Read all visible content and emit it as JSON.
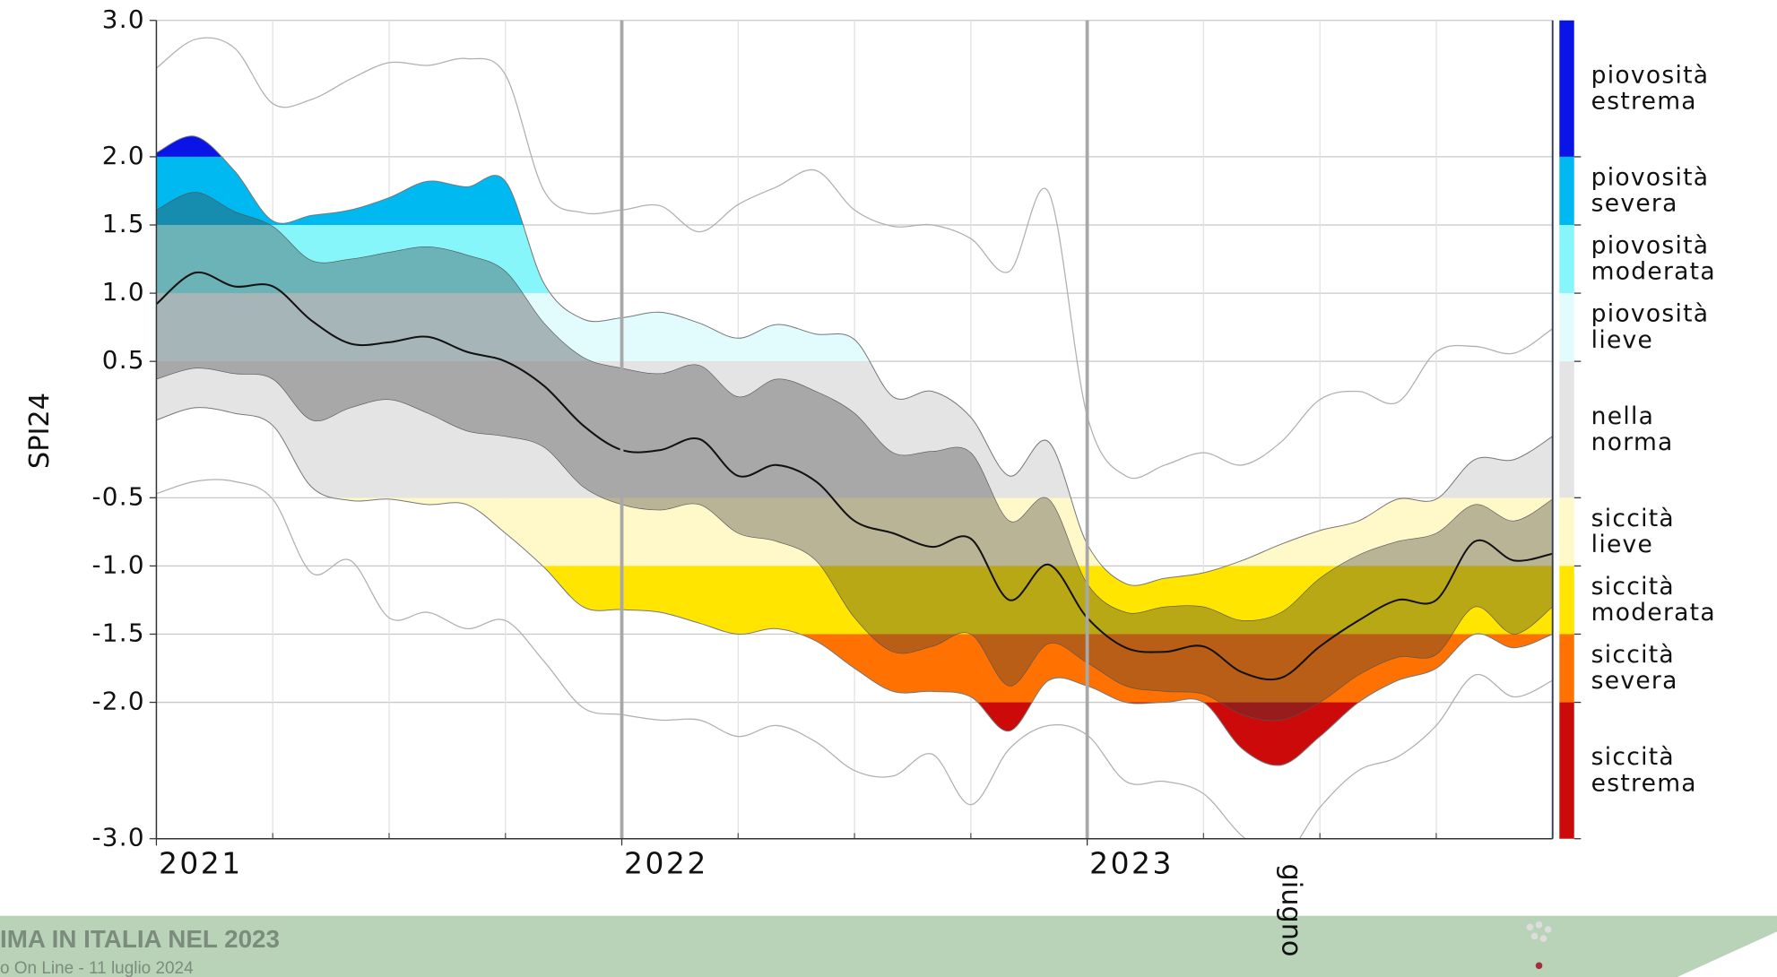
{
  "chart_data": {
    "type": "band",
    "ylabel": "SPI24",
    "xlim": [
      2021,
      2024
    ],
    "xticks": [
      2021,
      2022,
      2023
    ],
    "xminorticks": [
      2021.25,
      2021.5,
      2021.75,
      2022.25,
      2022.5,
      2022.75,
      2023.25,
      2023.5,
      2023.75
    ],
    "ylim": [
      -3,
      3
    ],
    "yticks": [
      {
        "value": 3,
        "label": "3.0"
      },
      {
        "value": 2,
        "label": "2.0"
      },
      1.5,
      {
        "value": 1,
        "label": "1.0"
      },
      0.5,
      -0.5,
      {
        "value": -1,
        "label": "-1.0"
      },
      -1.5,
      {
        "value": -2,
        "label": "-2.0"
      },
      {
        "value": -3,
        "label": "-3.0"
      }
    ],
    "grid": true,
    "x": [
      2021,
      2021.083,
      2021.167,
      2021.25,
      2021.333,
      2021.417,
      2021.5,
      2021.583,
      2021.667,
      2021.75,
      2021.833,
      2021.917,
      2022,
      2022.083,
      2022.167,
      2022.25,
      2022.333,
      2022.417,
      2022.5,
      2022.583,
      2022.667,
      2022.75,
      2022.833,
      2022.917,
      2023,
      2023.083,
      2023.167,
      2023.25,
      2023.333,
      2023.417,
      2023.5,
      2023.583,
      2023.667,
      2023.75,
      2023.833,
      2023.917,
      2024
    ],
    "median": {
      "color": "#111111",
      "values": [
        0.92,
        1.15,
        1.05,
        1.05,
        0.8,
        0.63,
        0.64,
        0.68,
        0.57,
        0.5,
        0.32,
        0.03,
        -0.15,
        -0.15,
        -0.07,
        -0.34,
        -0.26,
        -0.38,
        -0.67,
        -0.76,
        -0.86,
        -0.8,
        -1.25,
        -0.99,
        -1.38,
        -1.6,
        -1.63,
        -1.59,
        -1.78,
        -1.82,
        -1.59,
        -1.4,
        -1.25,
        -1.25,
        -0.82,
        -0.96,
        -0.91
      ]
    },
    "inner_band": {
      "color": "rgba(60,60,60,0.36)",
      "high": [
        1.61,
        1.74,
        1.6,
        1.49,
        1.24,
        1.25,
        1.3,
        1.34,
        1.28,
        1.16,
        0.78,
        0.53,
        0.45,
        0.41,
        0.47,
        0.24,
        0.37,
        0.28,
        0.12,
        -0.17,
        -0.16,
        -0.17,
        -0.67,
        -0.51,
        -1.13,
        -1.34,
        -1.3,
        -1.3,
        -1.4,
        -1.34,
        -1.09,
        -0.92,
        -0.82,
        -0.76,
        -0.55,
        -0.67,
        -0.51
      ],
      "low": [
        0.37,
        0.45,
        0.41,
        0.37,
        0.07,
        0.16,
        0.22,
        0.12,
        -0.01,
        -0.05,
        -0.13,
        -0.42,
        -0.55,
        -0.59,
        -0.55,
        -0.76,
        -0.82,
        -0.96,
        -1.38,
        -1.63,
        -1.59,
        -1.5,
        -1.88,
        -1.57,
        -1.71,
        -1.88,
        -1.92,
        -1.94,
        -2.09,
        -2.13,
        -2.0,
        -1.8,
        -1.67,
        -1.65,
        -1.3,
        -1.5,
        -1.3
      ]
    },
    "outer_band": {
      "color": "#777777",
      "high": [
        2.03,
        2.15,
        1.9,
        1.53,
        1.57,
        1.61,
        1.7,
        1.82,
        1.78,
        1.82,
        1.07,
        0.81,
        0.82,
        0.86,
        0.78,
        0.67,
        0.77,
        0.7,
        0.66,
        0.24,
        0.28,
        0.09,
        -0.34,
        -0.09,
        -0.84,
        -1.13,
        -1.09,
        -1.05,
        -0.96,
        -0.84,
        -0.74,
        -0.67,
        -0.51,
        -0.51,
        -0.22,
        -0.22,
        -0.05
      ],
      "low": [
        0.07,
        0.16,
        0.12,
        0.03,
        -0.42,
        -0.52,
        -0.51,
        -0.55,
        -0.55,
        -0.76,
        -1.01,
        -1.3,
        -1.32,
        -1.34,
        -1.42,
        -1.5,
        -1.46,
        -1.55,
        -1.75,
        -1.92,
        -1.92,
        -1.96,
        -2.21,
        -1.84,
        -1.88,
        -2.0,
        -2.0,
        -2.0,
        -2.34,
        -2.46,
        -2.25,
        -2.0,
        -1.84,
        -1.75,
        -1.5,
        -1.6,
        -1.5
      ]
    },
    "envelope": {
      "color": "#b0b0b0",
      "high": [
        2.65,
        2.86,
        2.8,
        2.39,
        2.42,
        2.57,
        2.69,
        2.67,
        2.72,
        2.6,
        1.75,
        1.59,
        1.61,
        1.64,
        1.45,
        1.65,
        1.78,
        1.9,
        1.61,
        1.49,
        1.5,
        1.4,
        1.16,
        1.74,
        0.1,
        -0.34,
        -0.26,
        -0.17,
        -0.26,
        -0.09,
        0.22,
        0.28,
        0.2,
        0.57,
        0.61,
        0.56,
        0.74
      ],
      "low": [
        -0.47,
        -0.38,
        -0.38,
        -0.51,
        -1.05,
        -0.96,
        -1.38,
        -1.34,
        -1.46,
        -1.4,
        -1.7,
        -2.04,
        -2.09,
        -2.13,
        -2.13,
        -2.25,
        -2.17,
        -2.29,
        -2.5,
        -2.54,
        -2.38,
        -2.75,
        -2.34,
        -2.17,
        -2.24,
        -2.58,
        -2.58,
        -2.67,
        -2.98,
        -3.15,
        -2.77,
        -2.5,
        -2.4,
        -2.17,
        -1.8,
        -1.96,
        -1.84
      ]
    },
    "classes": [
      {
        "label": [
          "piovosità",
          "estrema"
        ],
        "from": 2,
        "to": 3,
        "color": "#0a14e6"
      },
      {
        "label": [
          "piovosità",
          "severa"
        ],
        "from": 1.5,
        "to": 2,
        "color": "#00b9f0"
      },
      {
        "label": [
          "piovosità",
          "moderata"
        ],
        "from": 1,
        "to": 1.5,
        "color": "#86f6fb"
      },
      {
        "label": [
          "piovosità",
          "lieve"
        ],
        "from": 0.5,
        "to": 1,
        "color": "#e2fbfd"
      },
      {
        "label": [
          "nella",
          "norma"
        ],
        "from": -0.5,
        "to": 0.5,
        "color": "#e4e4e4"
      },
      {
        "label": [
          "siccità",
          "lieve"
        ],
        "from": -1,
        "to": -0.5,
        "color": "#fff8c9"
      },
      {
        "label": [
          "siccità",
          "moderata"
        ],
        "from": -1.5,
        "to": -1,
        "color": "#ffe500"
      },
      {
        "label": [
          "siccità",
          "severa"
        ],
        "from": -2,
        "to": -1.5,
        "color": "#ff7100"
      },
      {
        "label": [
          "siccità",
          "estrema"
        ],
        "from": -3,
        "to": -2,
        "color": "#cc0a0a"
      }
    ],
    "annotation": {
      "text": "giugno",
      "x": 2023.417
    }
  },
  "footer": {
    "title": "IMA IN ITALIA NEL 2023",
    "subtitle": "o On Line - 11 luglio 2024"
  }
}
